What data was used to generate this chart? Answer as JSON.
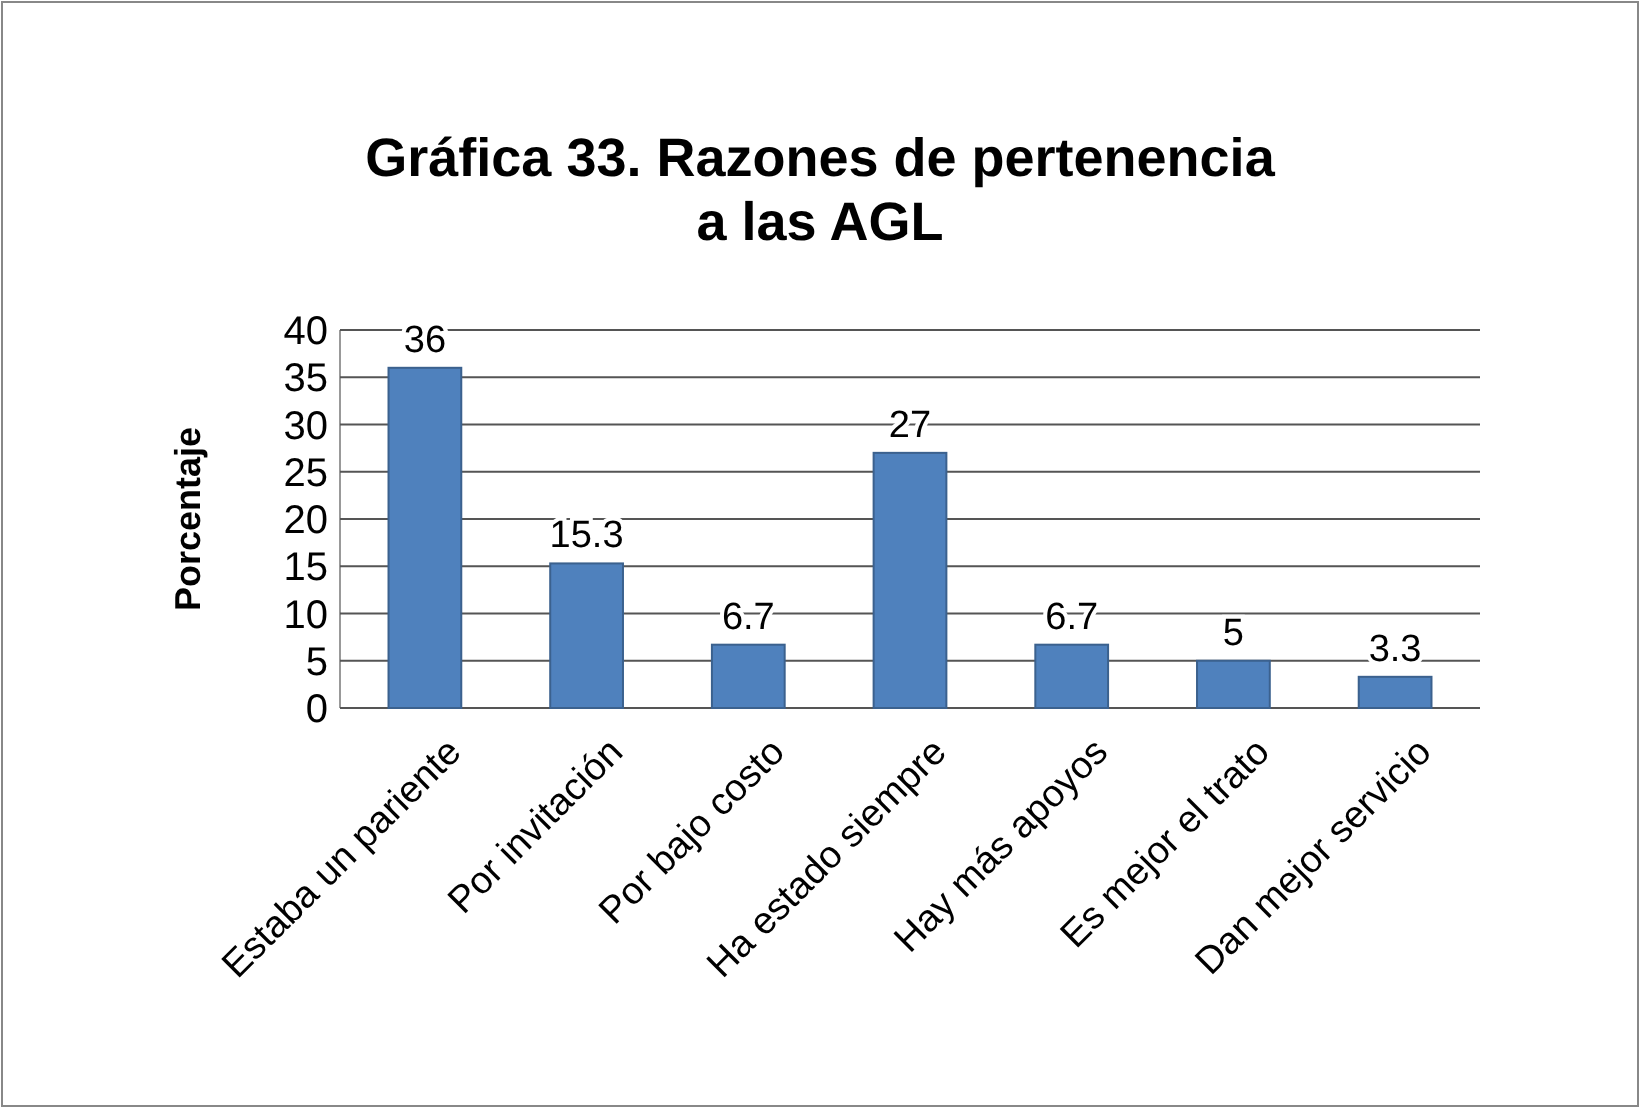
{
  "chart_data": {
    "type": "bar",
    "title": "Gráfica 33. Razones de pertenencia a las AGL",
    "ylabel": "Porcentaje",
    "categories": [
      "Estaba un pariente",
      "Por invitación",
      "Por bajo costo",
      "Ha estado siempre",
      "Hay más apoyos",
      "Es mejor el trato",
      "Dan mejor servicio"
    ],
    "values": [
      36,
      15.3,
      6.7,
      27,
      6.7,
      5,
      3.3
    ],
    "color": "#4f81bd",
    "ylim": [
      0,
      40
    ],
    "yticks": [
      0,
      5,
      10,
      15,
      20,
      25,
      30,
      35,
      40
    ],
    "grid": "y",
    "data_labels": true
  }
}
